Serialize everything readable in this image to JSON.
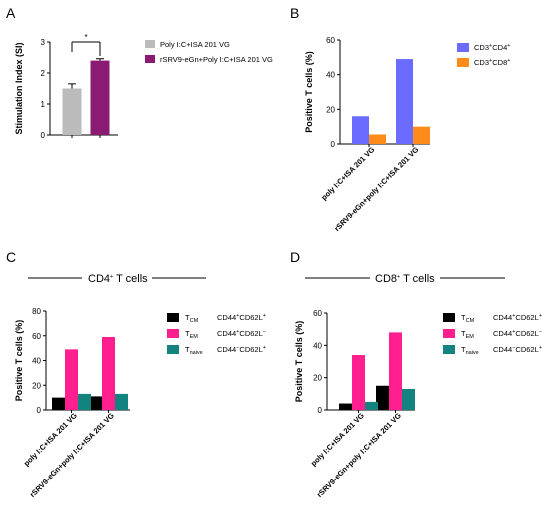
{
  "panels": [
    {
      "letter": "A",
      "chart_data": {
        "type": "bar",
        "categories": [
          "Poly I:C+ISA 201 VG",
          "rSRV9-eGn+Poly I:C+ISA 201 VG"
        ],
        "values": [
          1.5,
          2.4
        ],
        "errors": [
          0.15,
          0.06
        ],
        "colors": [
          "#bbbbbb",
          "#8b1a73"
        ],
        "ylabel": "Stimulation Index (SI)",
        "ylim": [
          0,
          3
        ],
        "yticks": [
          0,
          1,
          2,
          3
        ],
        "significance": "*",
        "legend": [
          "Poly I:C+ISA 201 VG",
          "rSRV9-eGn+Poly I:C+ISA 201 VG"
        ],
        "legend_position": "right"
      }
    },
    {
      "letter": "B",
      "chart_data": {
        "type": "bar",
        "categories": [
          "poly I:C+ISA 201 VG",
          "rSRV9-eGn+poly I:C+ISA 201 VG"
        ],
        "series": [
          {
            "name": "CD3+CD4+",
            "name_parts": [
              "CD3",
              "+",
              "CD4",
              "+"
            ],
            "values": [
              16,
              49
            ],
            "color": "#6b6bff"
          },
          {
            "name": "CD3+CD8+",
            "name_parts": [
              "CD3",
              "+",
              "CD8",
              "+"
            ],
            "values": [
              5.5,
              10
            ],
            "color": "#ff8c1a"
          }
        ],
        "ylabel": "Positive T cells (%)",
        "ylim": [
          0,
          60
        ],
        "yticks": [
          0,
          20,
          40,
          60
        ],
        "legend_position": "right"
      }
    },
    {
      "letter": "C",
      "section_title": {
        "main": "CD4",
        "sup": "+",
        "rest": " T cells"
      },
      "chart_data": {
        "type": "bar",
        "categories": [
          "poly I:C+ISA 201 VG",
          "rSRV9-eGn+poly I:C+ISA 201 VG"
        ],
        "series": [
          {
            "name": "TCM CD44+CD62L+",
            "label": "T",
            "sub": "CM",
            "marker": "CD44+CD62L+",
            "m1": "CD44",
            "s1": "+",
            "m2": "CD62L",
            "s2": "+",
            "values": [
              10,
              11
            ],
            "color": "#000000"
          },
          {
            "name": "TEM CD44+CD62L−",
            "label": "T",
            "sub": "EM",
            "marker": "CD44+CD62L−",
            "m1": "CD44",
            "s1": "+",
            "m2": "CD62L",
            "s2": "−",
            "values": [
              49,
              59
            ],
            "color": "#ff1f8e"
          },
          {
            "name": "Tnaive CD44−CD62L+",
            "label": "T",
            "sub": "naive",
            "marker": "CD44−CD62L+",
            "m1": "CD44",
            "s1": "−",
            "m2": "CD62L",
            "s2": "+",
            "values": [
              13,
              13
            ],
            "color": "#13837f"
          }
        ],
        "ylabel": "Positive T cells (%)",
        "ylim": [
          0,
          80
        ],
        "yticks": [
          0,
          20,
          40,
          60,
          80
        ],
        "legend_position": "right"
      }
    },
    {
      "letter": "D",
      "section_title": {
        "main": "CD8",
        "sup": "+",
        "rest": " T cells"
      },
      "chart_data": {
        "type": "bar",
        "categories": [
          "poly I:C+ISA 201 VG",
          "rSRV9-eGn+poly I:C+ISA 201 VG"
        ],
        "series": [
          {
            "name": "TCM CD44+CD62L+",
            "label": "T",
            "sub": "CM",
            "marker": "CD44+CD62L+",
            "m1": "CD44",
            "s1": "+",
            "m2": "CD62L",
            "s2": "+",
            "values": [
              4,
              15
            ],
            "color": "#000000"
          },
          {
            "name": "TEM CD44+CD62L−",
            "label": "T",
            "sub": "EM",
            "marker": "CD44+CD62L−",
            "m1": "CD44",
            "s1": "+",
            "m2": "CD62L",
            "s2": "−",
            "values": [
              34,
              48
            ],
            "color": "#ff1f8e"
          },
          {
            "name": "Tnaive CD44−CD62L+",
            "label": "T",
            "sub": "naive",
            "marker": "CD44−CD62L+",
            "m1": "CD44",
            "s1": "−",
            "m2": "CD62L",
            "s2": "+",
            "values": [
              5,
              13
            ],
            "color": "#13837f"
          }
        ],
        "ylabel": "Positive T cells (%)",
        "ylim": [
          0,
          60
        ],
        "yticks": [
          0,
          20,
          40,
          60
        ],
        "legend_position": "right"
      }
    }
  ]
}
